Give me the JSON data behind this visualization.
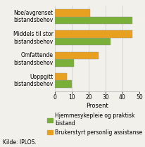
{
  "categories": [
    "Noe/avgrenset\nbistandsbehov",
    "Middels til stor\nbistandsbehov",
    "Omfattende\nbistandsbehov",
    "Uoppgitt\nbistandsbehov"
  ],
  "hjemme_values": [
    46,
    33,
    11,
    10
  ],
  "brukerstyrt_values": [
    21,
    46,
    26,
    7
  ],
  "hjemme_color": "#7aaf3a",
  "brukerstyrt_color": "#e8a020",
  "bar_height": 0.35,
  "xlim": [
    0,
    50
  ],
  "xticks": [
    0,
    10,
    20,
    30,
    40,
    50
  ],
  "xlabel": "Prosent",
  "legend_hjemme": "Hjemmesykepleie og praktisk\nbistand",
  "legend_brukerstyrt": "Brukerstyrt personlig assistanse",
  "kilde": "Kilde: IPLOS.",
  "grid_color": "#cccccc",
  "background_color": "#f2f0eb",
  "axis_fontsize": 6.0,
  "tick_fontsize": 5.5,
  "legend_fontsize": 5.5,
  "ylabel_fontsize": 5.5
}
